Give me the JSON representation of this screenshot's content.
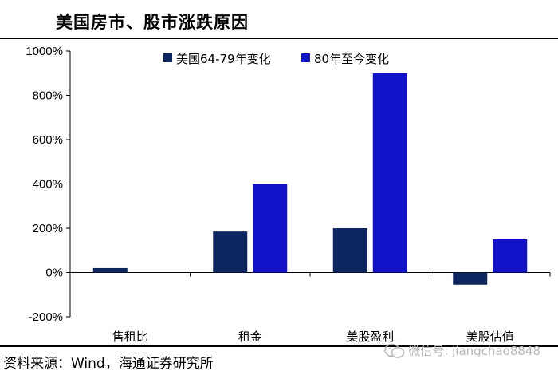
{
  "title": "美国房市、股市涨跌原因",
  "source": "资料来源：Wind，海通证券研究所",
  "watermark": "微信号: jiangchao8848",
  "colors": {
    "series1": "#0d2660",
    "series2": "#1212c8"
  },
  "chart_data": {
    "type": "bar",
    "categories": [
      "售租比",
      "租金",
      "美股盈利",
      "美股估值"
    ],
    "series": [
      {
        "name": "美国64-79年变化",
        "values": [
          20,
          185,
          200,
          -55
        ]
      },
      {
        "name": "80年至今变化",
        "values": [
          0,
          400,
          900,
          150
        ]
      }
    ],
    "ylim": [
      -200,
      1000
    ],
    "yticks": [
      -200,
      0,
      200,
      400,
      600,
      800,
      1000
    ],
    "ytick_labels": [
      "-200%",
      "0%",
      "200%",
      "400%",
      "600%",
      "800%",
      "1000%"
    ],
    "legend_position": "top",
    "grid": false
  }
}
